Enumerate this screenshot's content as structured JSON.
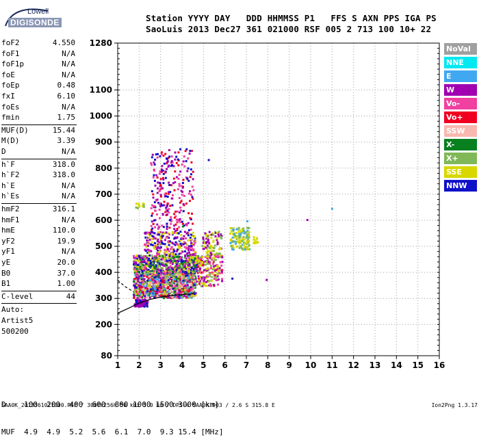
{
  "logo": {
    "line1": "Lowell",
    "line2": "DIGISONDE"
  },
  "header": {
    "line1": "Station YYYY DAY   DDD HHMMSS P1   FFS S AXN PPS IGA PS",
    "line2": "SaoLuis 2013 Dec27 361 021000 RSF 005 2 713 100 10+ 22"
  },
  "params": [
    {
      "name": "foF2",
      "value": "4.550"
    },
    {
      "name": "foF1",
      "value": "N/A"
    },
    {
      "name": "foF1p",
      "value": "N/A"
    },
    {
      "name": "foE",
      "value": "N/A"
    },
    {
      "name": "foEp",
      "value": "0.48"
    },
    {
      "name": "fxI",
      "value": "6.10"
    },
    {
      "name": "foEs",
      "value": "N/A"
    },
    {
      "name": "fmin",
      "value": "1.75"
    },
    {
      "name": "MUF(D)",
      "value": "15.44"
    },
    {
      "name": "M(D)",
      "value": "3.39"
    },
    {
      "name": "D",
      "value": "N/A"
    },
    {
      "name": "h`F",
      "value": "318.0"
    },
    {
      "name": "h`F2",
      "value": "318.0"
    },
    {
      "name": "h`E",
      "value": "N/A"
    },
    {
      "name": "h`Es",
      "value": "N/A"
    },
    {
      "name": "hmF2",
      "value": "316.1"
    },
    {
      "name": "hmF1",
      "value": "N/A"
    },
    {
      "name": "hmE",
      "value": "110.0"
    },
    {
      "name": "yF2",
      "value": "19.9"
    },
    {
      "name": "yF1",
      "value": "N/A"
    },
    {
      "name": "yE",
      "value": "20.0"
    },
    {
      "name": "B0",
      "value": "37.0"
    },
    {
      "name": "B1",
      "value": "1.00"
    },
    {
      "name": "C-level",
      "value": "44"
    }
  ],
  "autoscaling": {
    "line1": "Auto:",
    "line2": "Artist5",
    "line3": "500200"
  },
  "legend": [
    {
      "label": "NoVal",
      "color": "#a0a0a0"
    },
    {
      "label": "NNE",
      "color": "#00e8f0"
    },
    {
      "label": "E",
      "color": "#40a8f0"
    },
    {
      "label": "W",
      "color": "#a000b0"
    },
    {
      "label": "Vo-",
      "color": "#f040a0"
    },
    {
      "label": "Vo+",
      "color": "#f00020"
    },
    {
      "label": "SSW",
      "color": "#f8b8b0"
    },
    {
      "label": "X-",
      "color": "#088020"
    },
    {
      "label": "X+",
      "color": "#80b858"
    },
    {
      "label": "SSE",
      "color": "#d8d800"
    },
    {
      "label": "NNW",
      "color": "#1010c8"
    }
  ],
  "dtable": {
    "line1": "D    100  200  400  600  800 1000 1500 3000 [km]",
    "line2": "MUF  4.9  4.9  5.2  5.6  6.1  7.0  9.3 15.4 [MHz]"
  },
  "footer": {
    "left": "SAA0K_2013361021000.RSF / 300fx256h 50 kHz 5.0 km / DPS-4 SAA0K 903 / 2.6 S 315.8 E",
    "right": "Ion2Png 1.3.17"
  },
  "chart_data": {
    "type": "scatter",
    "xlabel": "",
    "ylabel": "",
    "xlim": [
      1,
      16
    ],
    "ylim": [
      80,
      1280
    ],
    "xticks": [
      "1",
      "2",
      "3",
      "4",
      "5",
      "6",
      "7",
      "8",
      "9",
      "10",
      "11",
      "12",
      "13",
      "14",
      "15",
      "16"
    ],
    "yticks": [
      "80",
      "200",
      "300",
      "400",
      "500",
      "600",
      "700",
      "800",
      "900",
      "1000",
      "1100",
      "1280"
    ],
    "grid": true,
    "legend_position": "right",
    "profile_curve": [
      [
        1.0,
        243
      ],
      [
        1.5,
        262
      ],
      [
        2.0,
        282
      ],
      [
        2.5,
        296
      ],
      [
        3.0,
        305
      ],
      [
        3.5,
        311
      ],
      [
        4.0,
        315
      ],
      [
        4.55,
        318
      ]
    ],
    "profile_dashed": [
      [
        1.0,
        370
      ],
      [
        1.35,
        345
      ],
      [
        1.75,
        325
      ]
    ],
    "echo_clusters": [
      {
        "f": [
          1.75,
          2.35
        ],
        "h": [
          272,
          300
        ],
        "n": 120,
        "colors": [
          "#a000b0",
          "#1010c8",
          "#a000b0"
        ]
      },
      {
        "f": [
          1.7,
          4.6
        ],
        "h": [
          305,
          400
        ],
        "n": 1100,
        "colors": [
          "#f040a0",
          "#f00020",
          "#a000b0",
          "#1010c8",
          "#d8d800",
          "#80b858",
          "#088020",
          "#40a8f0",
          "#f8b8b0"
        ]
      },
      {
        "f": [
          1.7,
          4.7
        ],
        "h": [
          400,
          470
        ],
        "n": 600,
        "colors": [
          "#d8d800",
          "#a000b0",
          "#80b858",
          "#f040a0",
          "#088020",
          "#1010c8"
        ]
      },
      {
        "f": [
          2.2,
          4.6
        ],
        "h": [
          470,
          560
        ],
        "n": 260,
        "colors": [
          "#a000b0",
          "#f040a0",
          "#1010c8",
          "#d8d800"
        ]
      },
      {
        "f": [
          2.5,
          4.5
        ],
        "h": [
          560,
          880
        ],
        "n": 260,
        "colors": [
          "#a000b0",
          "#f040a0",
          "#1010c8",
          "#f00020"
        ]
      },
      {
        "f": [
          4.6,
          5.85
        ],
        "h": [
          350,
          470
        ],
        "n": 200,
        "colors": [
          "#f00020",
          "#f040a0",
          "#a000b0",
          "#d8d800",
          "#80b858"
        ]
      },
      {
        "f": [
          4.9,
          5.8
        ],
        "h": [
          470,
          560
        ],
        "n": 90,
        "colors": [
          "#d8d800",
          "#80b858",
          "#a000b0"
        ]
      },
      {
        "f": [
          6.2,
          7.1
        ],
        "h": [
          490,
          575
        ],
        "n": 130,
        "colors": [
          "#d8d800",
          "#d8d800",
          "#80b858",
          "#40a8f0"
        ]
      },
      {
        "f": [
          7.3,
          7.5
        ],
        "h": [
          515,
          540
        ],
        "n": 14,
        "colors": [
          "#d8d800"
        ]
      },
      {
        "f": [
          1.8,
          2.2
        ],
        "h": [
          650,
          670
        ],
        "n": 14,
        "colors": [
          "#d8d800",
          "#80b858"
        ]
      }
    ],
    "isolated_echoes": [
      [
        9.8,
        605,
        "#a000b0"
      ],
      [
        10.95,
        648,
        "#40a8f0"
      ],
      [
        7.9,
        375,
        "#a000b0"
      ],
      [
        6.3,
        380,
        "#1010c8"
      ],
      [
        7.0,
        600,
        "#40a8f0"
      ],
      [
        5.2,
        835,
        "#1010c8"
      ],
      [
        4.0,
        580,
        "#088020"
      ]
    ]
  }
}
